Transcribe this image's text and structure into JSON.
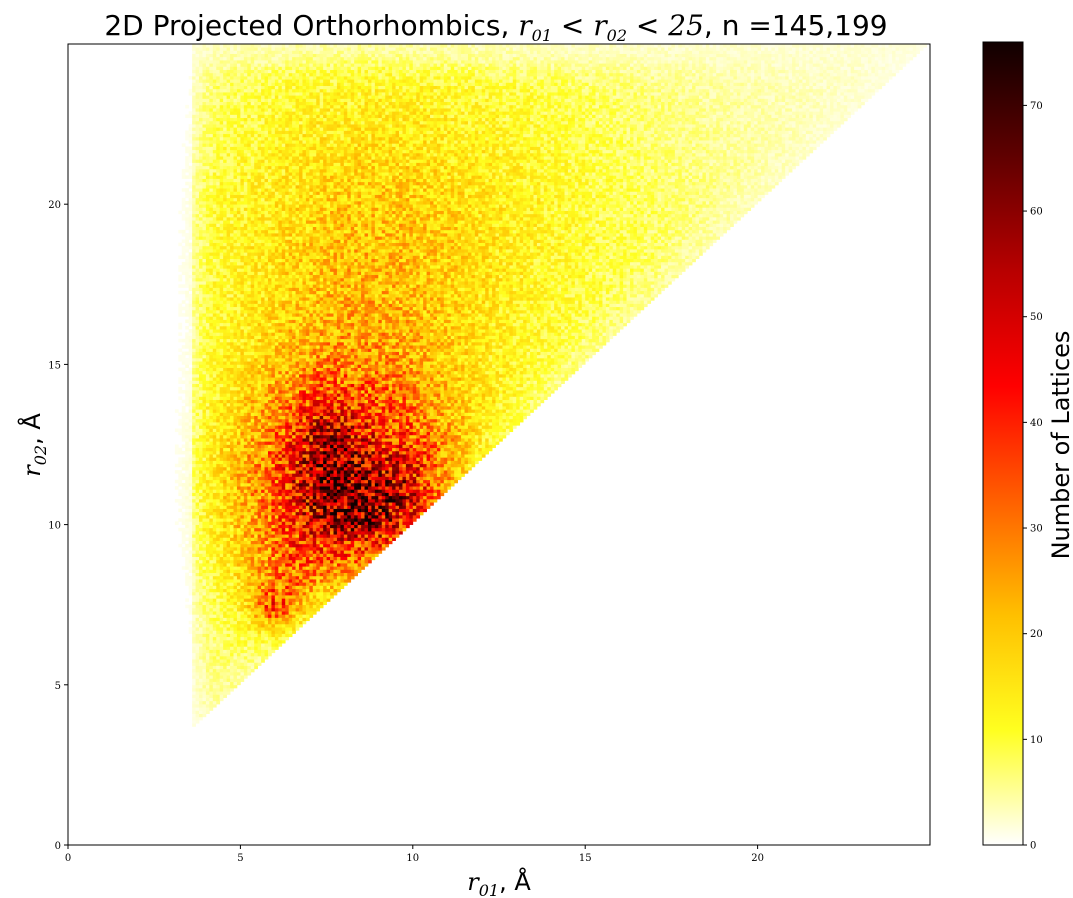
{
  "chart_data": {
    "type": "heatmap",
    "title": {
      "prefix": "2D Projected Orthorhombics, ",
      "cond_var1": "r",
      "cond_sub1": "01",
      "cond_op1": " < ",
      "cond_var2": "r",
      "cond_sub2": "02",
      "cond_op2": " < ",
      "cond_limit": "25",
      "suffix": ", n =145,199"
    },
    "xlabel": {
      "var": "r",
      "sub": "01",
      "unit": ", Å"
    },
    "ylabel": {
      "var": "r",
      "sub": "02",
      "unit": ", Å"
    },
    "colorbar_label": "Number of Lattices",
    "xlim": [
      0,
      25
    ],
    "ylim": [
      0,
      25
    ],
    "x_ticks": [
      "0",
      "5",
      "10",
      "15",
      "20"
    ],
    "y_ticks": [
      "0",
      "5",
      "10",
      "15",
      "20"
    ],
    "colorbar_range": [
      0,
      76
    ],
    "colorbar_ticks": [
      "0",
      "10",
      "20",
      "30",
      "40",
      "50",
      "60",
      "70"
    ],
    "colormap": "hot_r",
    "colormap_stops": [
      "#ffffff",
      "#ffff20",
      "#ffc000",
      "#ff6000",
      "#ff0000",
      "#b80000",
      "#600000",
      "#100000"
    ],
    "bin_width": 0.1,
    "domain_constraint": "r01 < r02 < 25",
    "grid": false,
    "density_peaks": [
      {
        "x": 7.5,
        "y": 11.5,
        "count": 72
      },
      {
        "x": 9.6,
        "y": 10.0,
        "count": 76
      },
      {
        "x": 6.0,
        "y": 7.3,
        "count": 45
      },
      {
        "x": 5.8,
        "y": 5.8,
        "count": 40
      }
    ]
  }
}
